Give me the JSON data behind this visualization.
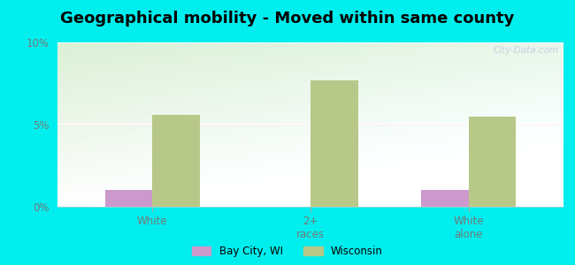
{
  "title": "Geographical mobility - Moved within same county",
  "categories": [
    "White",
    "2+\nraces",
    "White\nalone"
  ],
  "bay_city_values": [
    1.0,
    0.0,
    1.0
  ],
  "wisconsin_values": [
    5.6,
    7.7,
    5.5
  ],
  "ylim": [
    0,
    10
  ],
  "yticks": [
    0,
    5,
    10
  ],
  "yticklabels": [
    "0%",
    "5%",
    "10%"
  ],
  "bar_width": 0.3,
  "bay_city_color": "#cc99cc",
  "wisconsin_color": "#b8c888",
  "background_color": "#00eeee",
  "plot_bg_topleft": "#d8ecd0",
  "plot_bg_topright": "#e8e8e0",
  "plot_bg_bottom": "#f8fff8",
  "title_fontsize": 13,
  "legend_labels": [
    "Bay City, WI",
    "Wisconsin"
  ],
  "watermark": "City-Data.com",
  "tick_color": "#aaaaaa",
  "label_color": "#777777"
}
